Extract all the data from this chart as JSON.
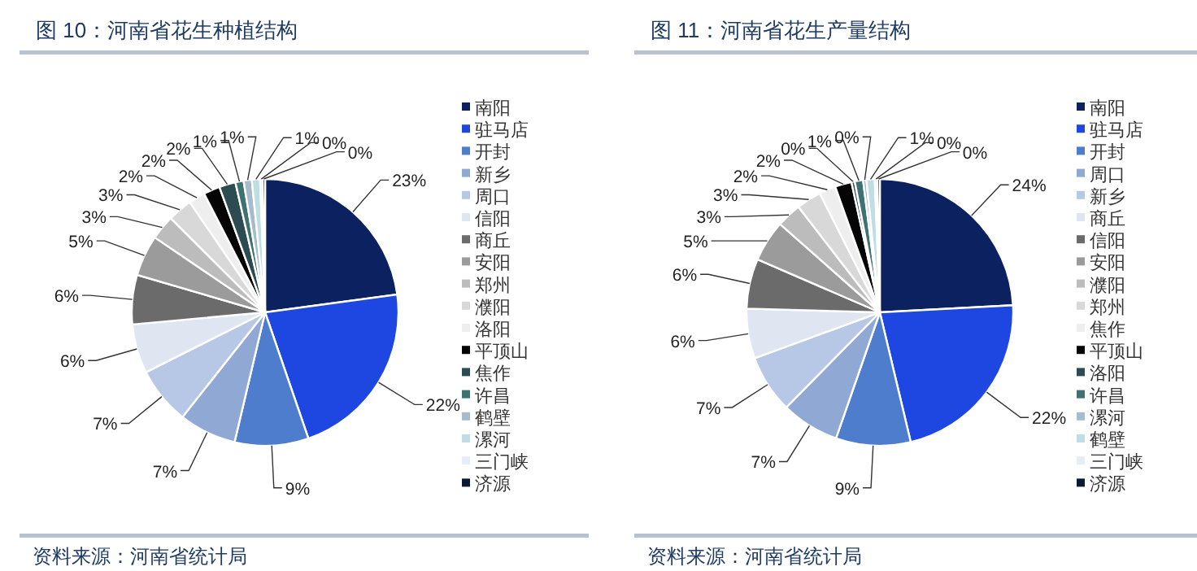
{
  "chart_data": [
    {
      "type": "pie",
      "title": "图 10：河南省花生种植结构",
      "categories": [
        "南阳",
        "驻马店",
        "开封",
        "新乡",
        "周口",
        "信阳",
        "商丘",
        "安阳",
        "郑州",
        "濮阳",
        "洛阳",
        "平顶山",
        "焦作",
        "许昌",
        "鹤壁",
        "漯河",
        "三门峡",
        "济源"
      ],
      "values": [
        23,
        22,
        9,
        7,
        7,
        6,
        6,
        5,
        3,
        3,
        2,
        2,
        2,
        1,
        1,
        1,
        0.3,
        0.3
      ],
      "value_labels": [
        "23%",
        "22%",
        "9%",
        "7%",
        "7%",
        "6%",
        "6%",
        "5%",
        "3%",
        "3%",
        "2%",
        "2%",
        "2%",
        "1%",
        "1%",
        "1%",
        "0%",
        "0%"
      ],
      "colors": [
        "#0b2160",
        "#1d47e0",
        "#4d7dcc",
        "#8fa9d4",
        "#b6c8e6",
        "#dfe6f1",
        "#6b6b6b",
        "#9b9b9b",
        "#bcbcbc",
        "#d8d8d8",
        "#eeeeee",
        "#050505",
        "#2c4c52",
        "#3e7272",
        "#a7bccb",
        "#bfdde2",
        "#e6eef5",
        "#0a1a36"
      ],
      "legend": "right",
      "annotations": [
        "资料来源：河南省统计局"
      ]
    },
    {
      "type": "pie",
      "title": "图 11：河南省花生产量结构",
      "categories": [
        "南阳",
        "驻马店",
        "开封",
        "周口",
        "新乡",
        "商丘",
        "信阳",
        "安阳",
        "濮阳",
        "郑州",
        "焦作",
        "平顶山",
        "洛阳",
        "许昌",
        "漯河",
        "鹤壁",
        "三门峡",
        "济源"
      ],
      "values": [
        24,
        22,
        9,
        7,
        7,
        6,
        6,
        5,
        3,
        3,
        2,
        2,
        0.4,
        1,
        0.4,
        1,
        0.3,
        0.3
      ],
      "value_labels": [
        "24%",
        "22%",
        "9%",
        "7%",
        "7%",
        "6%",
        "6%",
        "5%",
        "3%",
        "3%",
        "2%",
        "2%",
        "0%",
        "1%",
        "0%",
        "1%",
        "0%",
        "0%"
      ],
      "colors": [
        "#0b2160",
        "#1d47e0",
        "#4d7dcc",
        "#8fa9d4",
        "#b6c8e6",
        "#dfe6f1",
        "#6b6b6b",
        "#9b9b9b",
        "#bcbcbc",
        "#d8d8d8",
        "#eeeeee",
        "#050505",
        "#2c4c52",
        "#3e7272",
        "#a7bccb",
        "#bfdde2",
        "#e6eef5",
        "#0a1a36"
      ],
      "legend": "right",
      "annotations": [
        "资料来源：河南省统计局"
      ]
    }
  ]
}
